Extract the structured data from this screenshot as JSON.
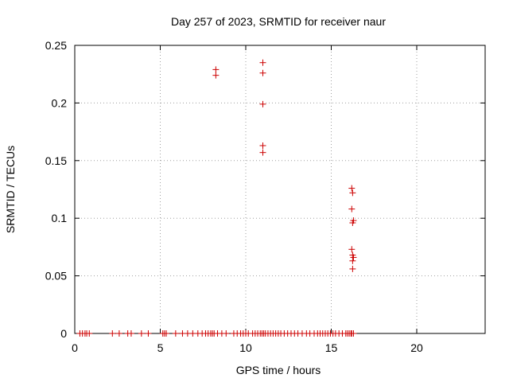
{
  "chart_data": {
    "type": "scatter",
    "title": "Day 257 of 2023, SRMTID for receiver naur",
    "xlabel": "GPS time / hours",
    "ylabel": "SRMTID / TECUs",
    "xlim": [
      0,
      24
    ],
    "ylim": [
      0,
      0.25
    ],
    "xticks": [
      0,
      5,
      10,
      15,
      20
    ],
    "xtick_labels": [
      "0",
      "5",
      "10",
      "15",
      "20"
    ],
    "yticks": [
      0,
      0.05,
      0.1,
      0.15,
      0.2,
      0.25
    ],
    "ytick_labels": [
      "0",
      "0.05",
      "0.1",
      "0.15",
      "0.2",
      "0.25"
    ],
    "grid": true,
    "marker": "plus",
    "color": "#cc0000",
    "series": [
      {
        "x": [
          8.25,
          8.25,
          11.0,
          11.0,
          11.0,
          11.0,
          11.0,
          16.2,
          16.25,
          16.2,
          16.3,
          16.25,
          16.2,
          16.25,
          16.3,
          16.25,
          16.25,
          0.3,
          0.45,
          0.6,
          0.7,
          0.85,
          2.2,
          2.6,
          3.1,
          3.3,
          3.9,
          4.3,
          5.15,
          5.25,
          5.35,
          5.9,
          6.3,
          6.6,
          6.9,
          7.2,
          7.45,
          7.65,
          7.8,
          7.95,
          8.05,
          8.15,
          8.35,
          8.6,
          8.85,
          9.3,
          9.5,
          9.7,
          9.85,
          10.0,
          10.15,
          10.4,
          10.55,
          10.7,
          10.85,
          10.95,
          11.05,
          11.15,
          11.3,
          11.45,
          11.6,
          11.75,
          11.9,
          12.05,
          12.25,
          12.45,
          12.65,
          12.85,
          13.05,
          13.3,
          13.55,
          13.75,
          14.0,
          14.2,
          14.35,
          14.5,
          14.65,
          14.8,
          14.95,
          15.1,
          15.25,
          15.45,
          15.65,
          15.85,
          15.95,
          16.05,
          16.15,
          16.2,
          16.3
        ],
        "y": [
          0.229,
          0.224,
          0.235,
          0.226,
          0.199,
          0.163,
          0.157,
          0.126,
          0.122,
          0.108,
          0.098,
          0.096,
          0.073,
          0.068,
          0.066,
          0.063,
          0.056,
          0,
          0,
          0,
          0,
          0,
          0,
          0,
          0,
          0,
          0,
          0,
          0,
          0,
          0,
          0,
          0,
          0,
          0,
          0,
          0,
          0,
          0,
          0,
          0,
          0,
          0,
          0,
          0,
          0,
          0,
          0,
          0,
          0,
          0,
          0,
          0,
          0,
          0,
          0,
          0,
          0,
          0,
          0,
          0,
          0,
          0,
          0,
          0,
          0,
          0,
          0,
          0,
          0,
          0,
          0,
          0,
          0,
          0,
          0,
          0,
          0,
          0,
          0,
          0,
          0,
          0,
          0,
          0,
          0,
          0,
          0,
          0
        ]
      }
    ]
  }
}
